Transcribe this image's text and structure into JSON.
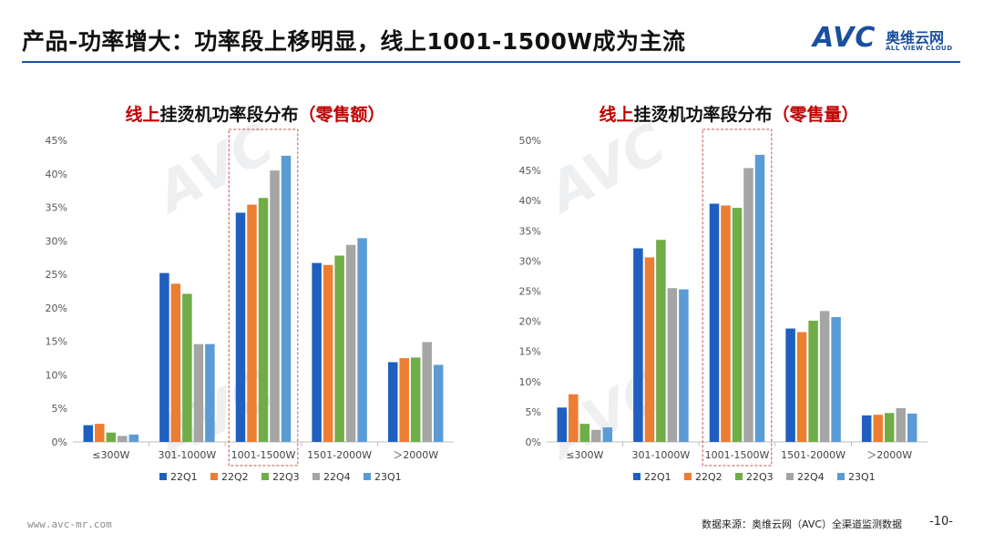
{
  "header": {
    "title": "产品-功率增大：功率段上移明显，线上1001-1500W成为主流",
    "logo_mark": "AVC",
    "logo_cn": "奥维云网",
    "logo_en": "ALL VIEW CLOUD"
  },
  "colors": {
    "accent": "#1a4fa0",
    "title_red": "#c00000",
    "series": [
      "#1f5fbf",
      "#ed7d31",
      "#70ad47",
      "#a5a5a5",
      "#5b9bd5"
    ],
    "highlight_box": "#c0504d"
  },
  "chart_data": [
    {
      "type": "bar",
      "title_prefix": "线上",
      "title_main": "挂烫机功率段分布",
      "title_suffix": "（零售额）",
      "categories": [
        "≤300W",
        "301-1000W",
        "1001-1500W",
        "1501-2000W",
        "＞2000W"
      ],
      "series": [
        {
          "name": "22Q1",
          "values": [
            2.5,
            25.2,
            34.2,
            26.7,
            11.9
          ]
        },
        {
          "name": "22Q2",
          "values": [
            2.7,
            23.6,
            35.4,
            26.4,
            12.5
          ]
        },
        {
          "name": "22Q3",
          "values": [
            1.4,
            22.1,
            36.4,
            27.8,
            12.6
          ]
        },
        {
          "name": "22Q4",
          "values": [
            0.9,
            14.6,
            40.5,
            29.4,
            14.9
          ]
        },
        {
          "name": "23Q1",
          "values": [
            1.1,
            14.6,
            42.7,
            30.4,
            11.5
          ]
        }
      ],
      "ylim": [
        0,
        45
      ],
      "yticks": [
        "0%",
        "5%",
        "10%",
        "15%",
        "20%",
        "25%",
        "30%",
        "35%",
        "40%",
        "45%"
      ],
      "highlight_category": "1001-1500W",
      "legend": "bottom",
      "grid": false
    },
    {
      "type": "bar",
      "title_prefix": "线上",
      "title_main": "挂烫机功率段分布",
      "title_suffix": "（零售量）",
      "categories": [
        "≤300W",
        "301-1000W",
        "1001-1500W",
        "1501-2000W",
        "＞2000W"
      ],
      "series": [
        {
          "name": "22Q1",
          "values": [
            5.7,
            32.1,
            39.5,
            18.8,
            4.4
          ]
        },
        {
          "name": "22Q2",
          "values": [
            7.9,
            30.6,
            39.2,
            18.2,
            4.5
          ]
        },
        {
          "name": "22Q3",
          "values": [
            3.0,
            33.5,
            38.8,
            20.1,
            4.8
          ]
        },
        {
          "name": "22Q4",
          "values": [
            2.0,
            25.5,
            45.4,
            21.7,
            5.6
          ]
        },
        {
          "name": "23Q1",
          "values": [
            2.4,
            25.3,
            47.6,
            20.7,
            4.7
          ]
        }
      ],
      "ylim": [
        0,
        50
      ],
      "yticks": [
        "0%",
        "5%",
        "10%",
        "15%",
        "20%",
        "25%",
        "30%",
        "35%",
        "40%",
        "45%",
        "50%"
      ],
      "highlight_category": "1001-1500W",
      "legend": "bottom",
      "grid": false
    }
  ],
  "footer": {
    "website": "www.avc-mr.com",
    "source": "数据来源：奥维云网（AVC）全渠道监测数据",
    "page_number": "-10-"
  }
}
